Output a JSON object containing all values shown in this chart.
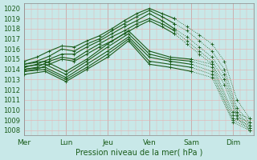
{
  "title": "",
  "xlabel": "Pression niveau de la mer( hPa )",
  "ylabel": "",
  "bg_color": "#c8e8e8",
  "grid_color": "#e8b0b0",
  "line_color": "#1a5c1a",
  "ylim": [
    1007.5,
    1020.5
  ],
  "xlim": [
    0,
    5.5
  ],
  "day_ticks": [
    0,
    1,
    2,
    3,
    4,
    5
  ],
  "day_labels": [
    "Mer",
    "Lun",
    "Jeu",
    "Ven",
    "Sam",
    "Dim"
  ],
  "yticks": [
    1008,
    1009,
    1010,
    1011,
    1012,
    1013,
    1014,
    1015,
    1016,
    1017,
    1018,
    1019,
    1020
  ],
  "curves": [
    {
      "x": [
        0,
        0.3,
        0.6,
        0.9,
        1.2,
        1.5,
        1.8,
        2.1,
        2.4,
        2.7,
        3.0,
        3.3,
        3.6,
        3.9,
        4.2,
        4.5,
        4.8,
        5.1,
        5.4
      ],
      "y": [
        1014.8,
        1015.2,
        1015.8,
        1016.3,
        1016.2,
        1016.8,
        1017.3,
        1018.0,
        1018.8,
        1019.5,
        1020.0,
        1019.5,
        1019.0,
        1018.2,
        1017.4,
        1016.5,
        1014.8,
        1011.0,
        1009.2
      ],
      "dotted_from": 12
    },
    {
      "x": [
        0,
        0.3,
        0.6,
        0.9,
        1.2,
        1.5,
        1.8,
        2.1,
        2.4,
        2.7,
        3.0,
        3.3,
        3.6,
        3.9,
        4.2,
        4.5,
        4.8,
        5.1,
        5.4
      ],
      "y": [
        1014.5,
        1014.8,
        1015.3,
        1016.0,
        1015.8,
        1016.5,
        1017.0,
        1017.8,
        1018.5,
        1019.2,
        1019.8,
        1019.2,
        1018.5,
        1017.8,
        1016.8,
        1015.8,
        1014.0,
        1010.2,
        1008.8
      ],
      "dotted_from": 12
    },
    {
      "x": [
        0,
        0.3,
        0.6,
        0.9,
        1.2,
        1.5,
        1.8,
        2.1,
        2.4,
        2.7,
        3.0,
        3.3,
        3.6,
        3.9,
        4.2,
        4.5,
        4.8,
        5.1,
        5.4
      ],
      "y": [
        1014.2,
        1014.5,
        1015.0,
        1015.5,
        1015.5,
        1016.2,
        1016.8,
        1017.5,
        1018.2,
        1018.8,
        1019.5,
        1018.8,
        1018.0,
        1017.2,
        1016.2,
        1015.2,
        1013.5,
        1009.8,
        1008.5
      ],
      "dotted_from": 12
    },
    {
      "x": [
        0,
        0.3,
        0.6,
        0.9,
        1.2,
        1.5,
        1.8,
        2.1,
        2.4,
        2.7,
        3.0,
        3.3,
        3.6,
        3.9,
        4.2,
        4.5,
        4.8,
        5.1,
        5.4
      ],
      "y": [
        1014.0,
        1014.2,
        1014.8,
        1015.2,
        1015.0,
        1015.8,
        1016.5,
        1017.2,
        1017.8,
        1018.5,
        1019.0,
        1018.5,
        1017.8,
        1016.8,
        1015.8,
        1014.8,
        1013.0,
        1009.5,
        1008.2
      ],
      "dotted_from": 12
    },
    {
      "x": [
        0,
        0.3,
        0.6,
        0.9,
        1.2,
        1.5,
        1.8,
        2.1,
        2.4,
        2.7,
        3.0,
        3.3,
        3.6,
        3.9,
        4.2,
        4.5,
        4.8,
        5.1,
        5.4
      ],
      "y": [
        1013.8,
        1014.0,
        1014.5,
        1015.0,
        1014.8,
        1015.5,
        1016.2,
        1016.8,
        1017.5,
        1018.2,
        1018.8,
        1018.2,
        1017.5,
        1016.5,
        1015.5,
        1014.5,
        1012.5,
        1009.2,
        1008.0
      ],
      "dotted_from": 12
    },
    {
      "x": [
        0,
        0.5,
        1.0,
        1.5,
        2.0,
        2.5,
        3.0,
        3.5,
        4.0,
        4.5,
        5.0,
        5.4
      ],
      "y": [
        1014.5,
        1014.8,
        1013.8,
        1015.0,
        1016.5,
        1017.8,
        1015.8,
        1015.2,
        1015.0,
        1014.5,
        1009.8,
        1009.2
      ],
      "dotted_from": 8
    },
    {
      "x": [
        0,
        0.5,
        1.0,
        1.5,
        2.0,
        2.5,
        3.0,
        3.5,
        4.0,
        4.5,
        5.0,
        5.4
      ],
      "y": [
        1014.3,
        1014.5,
        1013.5,
        1014.8,
        1016.2,
        1017.5,
        1015.5,
        1015.0,
        1014.8,
        1014.2,
        1009.5,
        1008.8
      ],
      "dotted_from": 8
    },
    {
      "x": [
        0,
        0.5,
        1.0,
        1.5,
        2.0,
        2.5,
        3.0,
        3.5,
        4.0,
        4.5,
        5.0,
        5.4
      ],
      "y": [
        1014.0,
        1014.2,
        1013.2,
        1014.5,
        1015.8,
        1017.2,
        1015.2,
        1014.8,
        1014.5,
        1013.8,
        1009.2,
        1008.5
      ],
      "dotted_from": 8
    },
    {
      "x": [
        0,
        0.5,
        1.0,
        1.5,
        2.0,
        2.5,
        3.0,
        3.5,
        4.0,
        4.5,
        5.0,
        5.4
      ],
      "y": [
        1013.8,
        1014.0,
        1013.0,
        1014.2,
        1015.5,
        1017.0,
        1014.8,
        1014.5,
        1014.2,
        1013.5,
        1009.0,
        1008.2
      ],
      "dotted_from": 8
    },
    {
      "x": [
        0,
        0.5,
        1.0,
        1.5,
        2.0,
        2.5,
        3.0,
        3.5,
        4.0,
        4.5,
        5.0,
        5.4
      ],
      "y": [
        1013.5,
        1013.8,
        1012.8,
        1014.0,
        1015.2,
        1016.8,
        1014.5,
        1014.2,
        1013.8,
        1013.2,
        1008.8,
        1008.0
      ],
      "dotted_from": 8
    }
  ]
}
